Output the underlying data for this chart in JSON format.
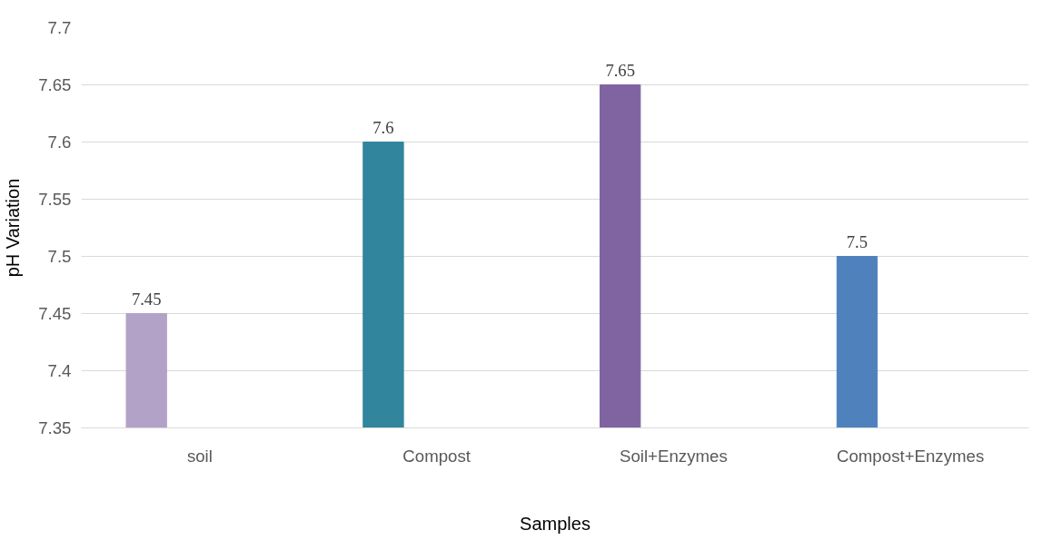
{
  "chart_data": {
    "type": "bar",
    "xlabel": "Samples",
    "ylabel": "pH Variation",
    "categories": [
      "soil",
      "Compost",
      "Soil+Enzymes",
      "Compost+Enzymes"
    ],
    "values": [
      7.45,
      7.6,
      7.65,
      7.5
    ],
    "colors": [
      "#b3a2c7",
      "#31859c",
      "#8064a2",
      "#4f81bd"
    ],
    "ylim": [
      7.35,
      7.7
    ],
    "yticks": [
      7.35,
      7.4,
      7.45,
      7.5,
      7.55,
      7.6,
      7.65,
      7.7
    ],
    "grid": "y",
    "data_labels": true
  }
}
